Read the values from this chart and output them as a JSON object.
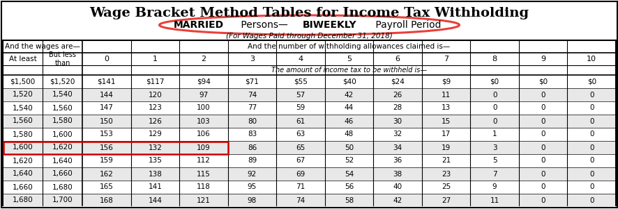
{
  "title": "Wage Bracket Method Tables for Income Tax Withholding",
  "subtitle2": "(For Wages Paid through December 31, 2018)",
  "header1_left": "And the wages are—",
  "header1_right": "And the number of withholding allowances claimed is—",
  "amount_header": "The amount of income tax to be withheld is—",
  "col_headers": [
    "0",
    "1",
    "2",
    "3",
    "4",
    "5",
    "6",
    "7",
    "8",
    "9",
    "10"
  ],
  "rows": [
    [
      "$1,500",
      "$1,520",
      "$141",
      "$117",
      "$94",
      "$71",
      "$55",
      "$40",
      "$24",
      "$9",
      "$0",
      "$0",
      "$0"
    ],
    [
      "1,520",
      "1,540",
      "144",
      "120",
      "97",
      "74",
      "57",
      "42",
      "26",
      "11",
      "0",
      "0",
      "0"
    ],
    [
      "1,540",
      "1,560",
      "147",
      "123",
      "100",
      "77",
      "59",
      "44",
      "28",
      "13",
      "0",
      "0",
      "0"
    ],
    [
      "1,560",
      "1,580",
      "150",
      "126",
      "103",
      "80",
      "61",
      "46",
      "30",
      "15",
      "0",
      "0",
      "0"
    ],
    [
      "1,580",
      "1,600",
      "153",
      "129",
      "106",
      "83",
      "63",
      "48",
      "32",
      "17",
      "1",
      "0",
      "0"
    ],
    [
      "1,600",
      "1,620",
      "156",
      "132",
      "109",
      "86",
      "65",
      "50",
      "34",
      "19",
      "3",
      "0",
      "0"
    ],
    [
      "1,620",
      "1,640",
      "159",
      "135",
      "112",
      "89",
      "67",
      "52",
      "36",
      "21",
      "5",
      "0",
      "0"
    ],
    [
      "1,640",
      "1,660",
      "162",
      "138",
      "115",
      "92",
      "69",
      "54",
      "38",
      "23",
      "7",
      "0",
      "0"
    ],
    [
      "1,660",
      "1,680",
      "165",
      "141",
      "118",
      "95",
      "71",
      "56",
      "40",
      "25",
      "9",
      "0",
      "0"
    ],
    [
      "1,680",
      "1,700",
      "168",
      "144",
      "121",
      "98",
      "74",
      "58",
      "42",
      "27",
      "11",
      "0",
      "0"
    ]
  ],
  "highlighted_row": 5,
  "highlight_color": "#cc0000",
  "ellipse_color": "#e8403a",
  "background_color": "#ffffff",
  "gray_row_color": "#e8e8e8",
  "title_fontsize": 14,
  "subtitle_fontsize": 10,
  "subtitle2_fontsize": 7.5,
  "header_fontsize": 7.5,
  "data_fontsize": 7.5
}
